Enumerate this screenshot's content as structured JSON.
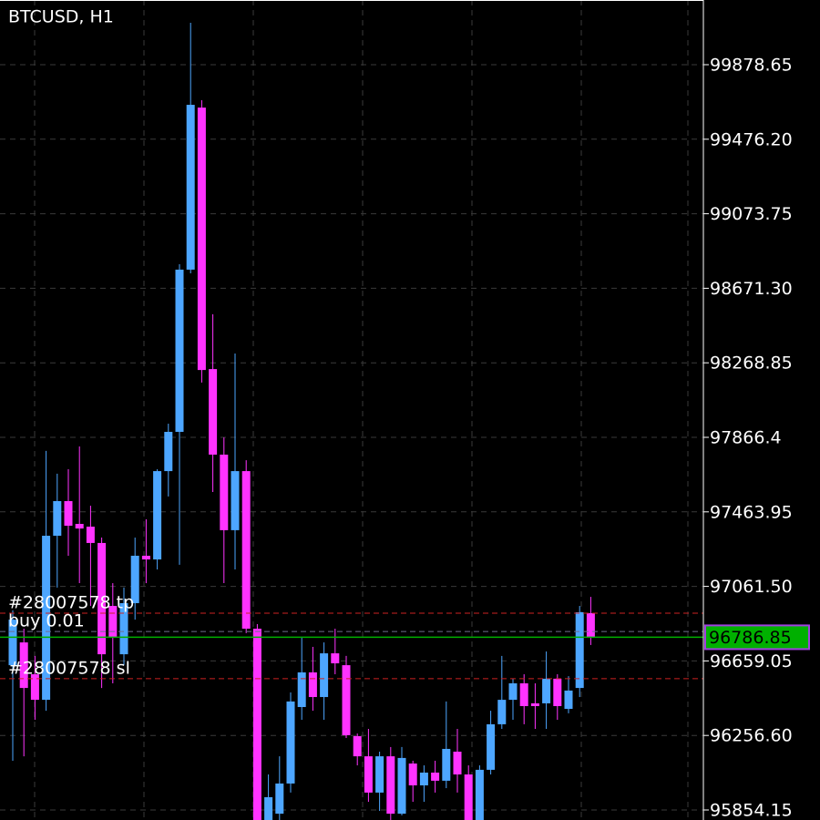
{
  "chart_data": {
    "type": "candlestick",
    "title": "BTCUSD, H1",
    "categories": [
      null,
      null,
      null,
      null,
      null,
      null,
      null,
      null,
      null,
      null,
      null,
      null,
      null,
      null,
      null,
      null,
      null,
      null,
      null,
      null,
      null,
      null,
      null,
      null,
      null,
      null,
      null,
      null,
      null,
      null,
      null,
      null,
      null,
      null,
      null,
      null,
      null,
      null,
      null,
      null,
      null,
      null,
      null,
      null,
      null,
      null,
      null,
      null,
      null,
      null,
      null,
      null,
      null
    ],
    "open": [
      96636,
      96759,
      96587,
      96449,
      97335,
      97522,
      97399,
      97384,
      97296,
      96956,
      96695,
      96971,
      97227,
      97207,
      97684,
      97896,
      98772,
      99647,
      98235,
      97773,
      97365,
      97684,
      96833,
      95751,
      95834,
      95997,
      96410,
      96597,
      96464,
      96700,
      96636,
      96253,
      96144,
      95948,
      96144,
      95834,
      96105,
      95987,
      96056,
      96012,
      96169,
      96046,
      95751,
      96071,
      96317,
      96449,
      96538,
      96430,
      96430,
      96563,
      96400,
      96513,
      96917
    ],
    "high": [
      96932,
      96833,
      96686,
      97793,
      97670,
      97694,
      97817,
      97497,
      97325,
      97079,
      97055,
      97325,
      97424,
      97694,
      97940,
      98801,
      100105,
      99687,
      98531,
      97866,
      98319,
      97743,
      96858,
      96046,
      96144,
      96489,
      96784,
      96735,
      96759,
      96833,
      96686,
      96267,
      96292,
      96169,
      96194,
      96194,
      96120,
      96095,
      96120,
      96440,
      96292,
      96095,
      96095,
      96390,
      96686,
      96563,
      96587,
      96538,
      96710,
      96587,
      96577,
      96956,
      97005
    ],
    "low": [
      96120,
      96144,
      96341,
      96390,
      97055,
      97227,
      97079,
      96956,
      96513,
      96538,
      96636,
      96882,
      97079,
      97153,
      97547,
      97178,
      98752,
      98162,
      97571,
      97079,
      97153,
      96809,
      95677,
      95677,
      95775,
      95948,
      96341,
      96390,
      96341,
      96587,
      96243,
      96095,
      95898,
      95849,
      95800,
      95825,
      95898,
      95898,
      95948,
      95972,
      95948,
      95677,
      95677,
      96046,
      96292,
      96341,
      96317,
      96292,
      96292,
      96341,
      96376,
      96464,
      96745
    ],
    "close": [
      96882,
      96513,
      96449,
      97335,
      97522,
      97389,
      97374,
      97296,
      96695,
      96784,
      96971,
      97227,
      97207,
      97684,
      97896,
      98772,
      99662,
      98230,
      97773,
      97365,
      97684,
      96833,
      95702,
      95923,
      95997,
      96440,
      96597,
      96464,
      96700,
      96646,
      96258,
      96144,
      95948,
      96144,
      95834,
      96135,
      95987,
      96056,
      96012,
      96184,
      96046,
      95751,
      96071,
      96317,
      96449,
      96538,
      96415,
      96415,
      96563,
      96415,
      96499,
      96922,
      96784
    ],
    "up_color": "#4da6ff",
    "down_color": "#ff33ff",
    "ylim": [
      95800,
      100228
    ],
    "yticks": [
      95854.15,
      {
        "value": 96256.6,
        "label": "96256.60"
      },
      96659.05,
      {
        "value": 97061.5,
        "label": "97061.50"
      },
      97463.95,
      97866.4,
      98268.85,
      {
        "value": 98671.3,
        "label": "98671.30"
      },
      99073.75,
      {
        "value": 99476.2,
        "label": "99476.20"
      },
      99878.65
    ],
    "grid": true,
    "orders": [
      {
        "label": "#28007578 tp",
        "value": 96917,
        "color": "#cc2222"
      },
      {
        "label": "buy 0.01",
        "value": 96818,
        "color": "#6e6e8c"
      },
      {
        "label": "#28007578 sl",
        "value": 96563,
        "color": "#cc2222"
      }
    ],
    "current_price": 96786.85,
    "current_color": "#00b000"
  }
}
